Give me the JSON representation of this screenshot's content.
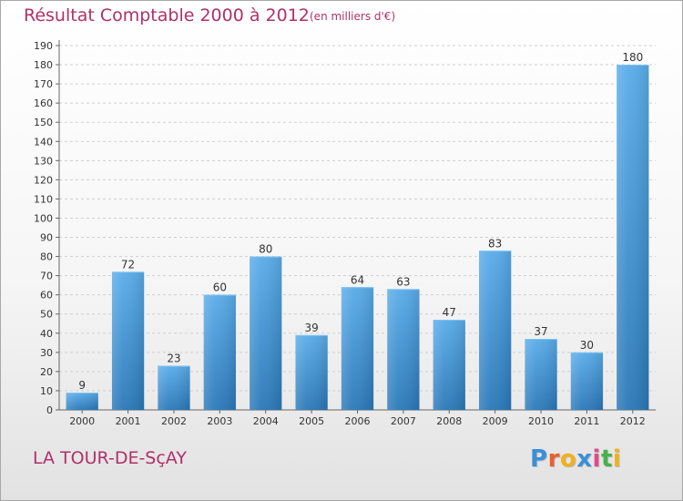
{
  "chart_data": {
    "type": "bar",
    "title": "Résultat Comptable 2000 à 2012",
    "unit": "(en milliers d'€)",
    "categories": [
      "2000",
      "2001",
      "2002",
      "2003",
      "2004",
      "2005",
      "2006",
      "2007",
      "2008",
      "2009",
      "2010",
      "2011",
      "2012"
    ],
    "values": [
      9,
      72,
      23,
      60,
      80,
      39,
      64,
      63,
      47,
      83,
      37,
      30,
      180
    ],
    "ylim": [
      0,
      190
    ],
    "ytick_step": 10,
    "grid": true,
    "bar_color_top": "#5aacea",
    "bar_color_bottom": "#2a78b8"
  },
  "commune": "LA TOUR-DE-SçAY",
  "brand": {
    "letters": [
      "P",
      "r",
      "o",
      "x",
      "i",
      "t",
      "i"
    ],
    "colors": [
      "#3a8fd8",
      "#e8612c",
      "#f2b11c",
      "#3a8fd8",
      "#e04a8a",
      "#48b24a",
      "#f2b11c"
    ]
  },
  "colors": {
    "title": "#b0306a",
    "grid": "#cfcfcf",
    "axis": "#666666"
  }
}
